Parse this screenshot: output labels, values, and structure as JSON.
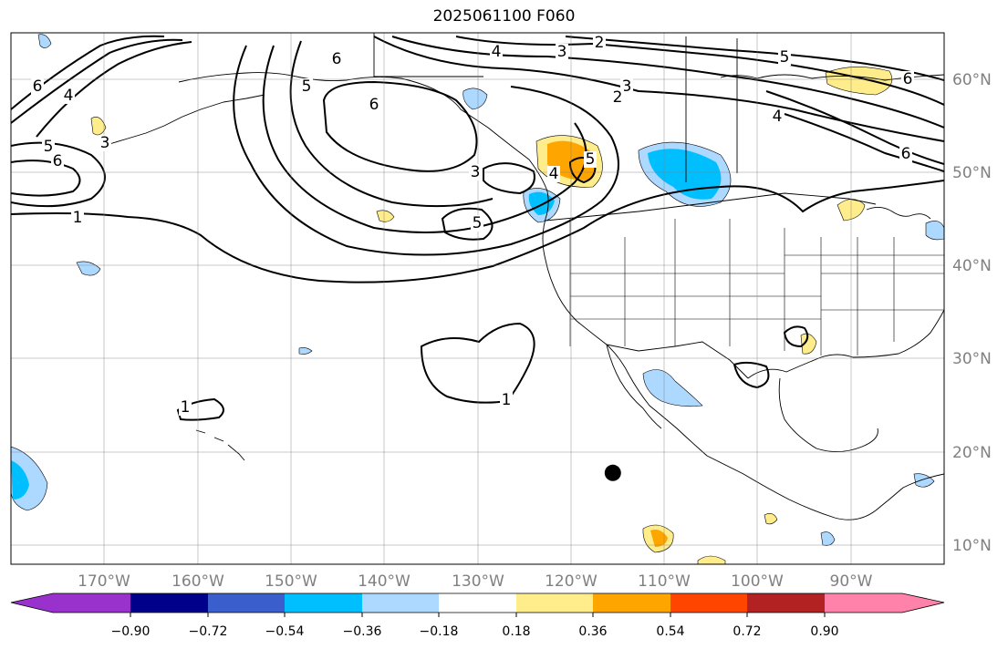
{
  "title": "2025061100 F060",
  "map": {
    "lon_range": [
      -180,
      -80
    ],
    "lat_range": [
      8,
      65
    ],
    "lon_ticks": [
      "170°W",
      "160°W",
      "150°W",
      "140°W",
      "130°W",
      "120°W",
      "110°W",
      "100°W",
      "90°W"
    ],
    "lat_ticks": [
      "10°N",
      "20°N",
      "30°N",
      "40°N",
      "50°N",
      "60°N"
    ],
    "gridlines": true,
    "contour_labels": [
      "6",
      "5",
      "4",
      "3",
      "2",
      "1"
    ],
    "marker": {
      "lon": -115.5,
      "lat": 17.8,
      "shape": "filled-circle"
    }
  },
  "colorbar": {
    "ticks": [
      "−0.90",
      "−0.72",
      "−0.54",
      "−0.36",
      "−0.18",
      "0.18",
      "0.36",
      "0.54",
      "0.72",
      "0.90"
    ],
    "colors": [
      "#9932cc",
      "#00008b",
      "#3a5fcd",
      "#00bfff",
      "#add8ff",
      "#ffffff",
      "#ffec8b",
      "#ffa500",
      "#ff4500",
      "#b22222",
      "#ff82ab"
    ],
    "orientation": "horizontal",
    "extend": "both"
  }
}
